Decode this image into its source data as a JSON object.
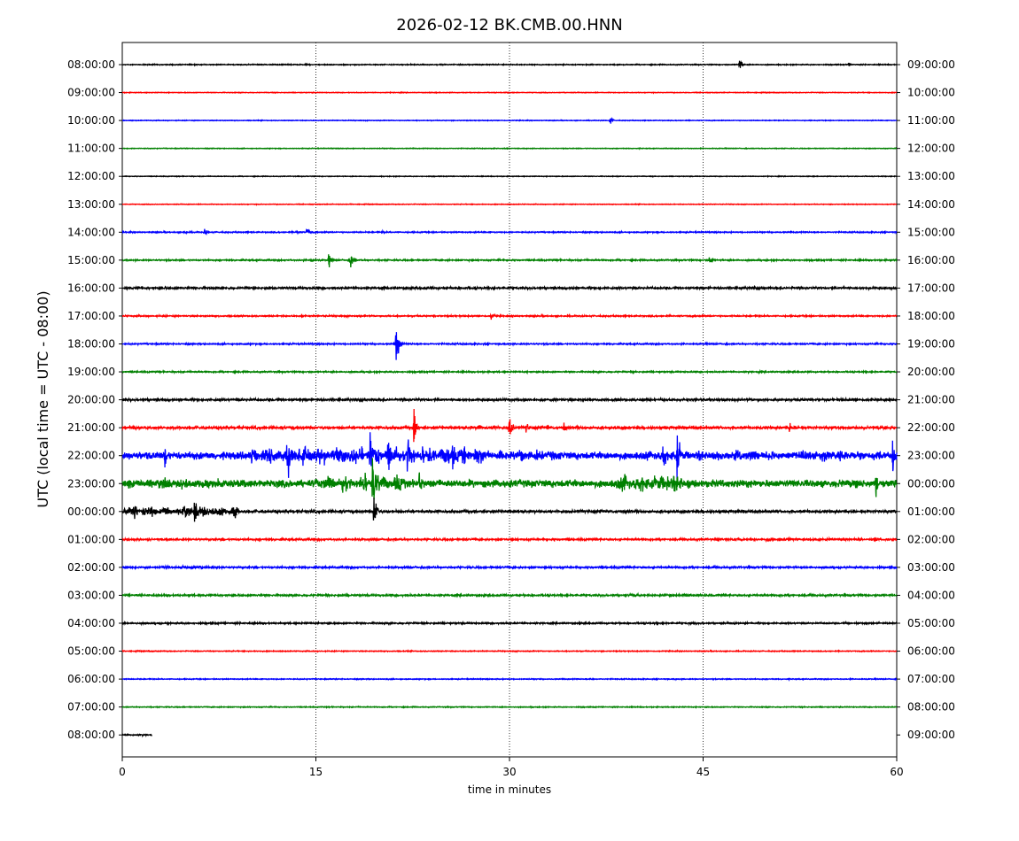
{
  "chart_data": {
    "type": "line",
    "title": "2026-02-12 BK.CMB.00.HNN",
    "xlabel": "time in minutes",
    "ylabel": "UTC (local time = UTC - 08:00)",
    "xlim": [
      0,
      60
    ],
    "x_ticks": [
      0,
      15,
      30,
      45,
      60
    ],
    "x_gridlines": [
      15,
      30,
      45
    ],
    "grid": "vertical dotted lines at 15, 30, 45",
    "color_cycle": [
      "#000000",
      "#ff0000",
      "#0000ff",
      "#008000"
    ],
    "left_labels": [
      "08:00:00",
      "09:00:00",
      "10:00:00",
      "11:00:00",
      "12:00:00",
      "13:00:00",
      "14:00:00",
      "15:00:00",
      "16:00:00",
      "17:00:00",
      "18:00:00",
      "19:00:00",
      "20:00:00",
      "21:00:00",
      "22:00:00",
      "23:00:00",
      "00:00:00",
      "01:00:00",
      "02:00:00",
      "03:00:00",
      "04:00:00",
      "05:00:00",
      "06:00:00",
      "07:00:00",
      "08:00:00"
    ],
    "right_labels": [
      "09:00:00",
      "10:00:00",
      "11:00:00",
      "12:00:00",
      "13:00:00",
      "14:00:00",
      "15:00:00",
      "16:00:00",
      "17:00:00",
      "18:00:00",
      "19:00:00",
      "20:00:00",
      "21:00:00",
      "22:00:00",
      "23:00:00",
      "00:00:00",
      "01:00:00",
      "02:00:00",
      "03:00:00",
      "04:00:00",
      "05:00:00",
      "06:00:00",
      "07:00:00",
      "08:00:00",
      "09:00:00"
    ],
    "trace_noise_levels": [
      0.4,
      0.3,
      0.3,
      0.3,
      0.3,
      0.3,
      0.5,
      0.6,
      0.9,
      0.6,
      0.6,
      0.6,
      1.0,
      1.2,
      3.5,
      3.5,
      1.2,
      0.8,
      0.8,
      0.8,
      0.7,
      0.4,
      0.4,
      0.4,
      0.6
    ],
    "last_trace_end_minute": 2.3,
    "events": [
      {
        "trace": 0,
        "minute": 47.8,
        "amp": 7
      },
      {
        "trace": 0,
        "minute": 56.3,
        "amp": 2.5
      },
      {
        "trace": 2,
        "minute": 37.8,
        "amp": 3.5
      },
      {
        "trace": 6,
        "minute": 4.8,
        "amp": 3
      },
      {
        "trace": 6,
        "minute": 6.4,
        "amp": 4
      },
      {
        "trace": 6,
        "minute": 13.5,
        "amp": 3
      },
      {
        "trace": 6,
        "minute": 14.3,
        "amp": 5
      },
      {
        "trace": 6,
        "minute": 20.2,
        "amp": 2
      },
      {
        "trace": 7,
        "minute": 14.6,
        "amp": 4
      },
      {
        "trace": 7,
        "minute": 16.0,
        "amp": 7
      },
      {
        "trace": 7,
        "minute": 17.7,
        "amp": 8
      },
      {
        "trace": 7,
        "minute": 45.5,
        "amp": 5
      },
      {
        "trace": 8,
        "minute": 34.9,
        "amp": 2
      },
      {
        "trace": 9,
        "minute": 28.6,
        "amp": 6
      },
      {
        "trace": 9,
        "minute": 13.9,
        "amp": 2.5
      },
      {
        "trace": 10,
        "minute": 21.2,
        "amp": 24
      },
      {
        "trace": 13,
        "minute": 22.6,
        "amp": 22
      },
      {
        "trace": 13,
        "minute": 27.6,
        "amp": 8
      },
      {
        "trace": 13,
        "minute": 28.8,
        "amp": 8
      },
      {
        "trace": 13,
        "minute": 30.0,
        "amp": 16
      },
      {
        "trace": 13,
        "minute": 31.3,
        "amp": 7
      },
      {
        "trace": 13,
        "minute": 32.9,
        "amp": 5
      },
      {
        "trace": 13,
        "minute": 34.2,
        "amp": 5
      },
      {
        "trace": 13,
        "minute": 51.7,
        "amp": 7
      },
      {
        "trace": 14,
        "minute": 3.3,
        "amp": 18
      },
      {
        "trace": 14,
        "minute": 12.9,
        "amp": 24
      },
      {
        "trace": 14,
        "minute": 19.2,
        "amp": 26
      },
      {
        "trace": 14,
        "minute": 20.6,
        "amp": 32
      },
      {
        "trace": 14,
        "minute": 22.1,
        "amp": 34
      },
      {
        "trace": 14,
        "minute": 25.6,
        "amp": 16
      },
      {
        "trace": 14,
        "minute": 41.9,
        "amp": 22
      },
      {
        "trace": 14,
        "minute": 43.0,
        "amp": 28
      },
      {
        "trace": 14,
        "minute": 59.7,
        "amp": 22
      },
      {
        "trace": 15,
        "minute": 19.4,
        "amp": 44
      },
      {
        "trace": 15,
        "minute": 23.0,
        "amp": 14
      },
      {
        "trace": 15,
        "minute": 38.9,
        "amp": 14
      },
      {
        "trace": 15,
        "minute": 42.2,
        "amp": 14
      },
      {
        "trace": 15,
        "minute": 58.4,
        "amp": 14
      },
      {
        "trace": 16,
        "minute": 0.9,
        "amp": 14
      },
      {
        "trace": 16,
        "minute": 2.3,
        "amp": 8
      },
      {
        "trace": 16,
        "minute": 5.6,
        "amp": 16
      },
      {
        "trace": 16,
        "minute": 8.6,
        "amp": 6
      },
      {
        "trace": 16,
        "minute": 19.5,
        "amp": 28
      },
      {
        "trace": 22,
        "minute": 36.3,
        "amp": 2
      }
    ],
    "bursts": [
      {
        "trace": 14,
        "from": 10,
        "to": 28,
        "amp": 9
      },
      {
        "trace": 14,
        "from": 28,
        "to": 34,
        "amp": 5
      },
      {
        "trace": 14,
        "from": 40,
        "to": 60,
        "amp": 5
      },
      {
        "trace": 15,
        "from": 0,
        "to": 8,
        "amp": 5
      },
      {
        "trace": 15,
        "from": 15,
        "to": 22,
        "amp": 8
      },
      {
        "trace": 15,
        "from": 38,
        "to": 44,
        "amp": 8
      },
      {
        "trace": 16,
        "from": 0,
        "to": 9,
        "amp": 5
      },
      {
        "trace": 17,
        "from": 46,
        "to": 60,
        "amp": 1.3
      },
      {
        "trace": 18,
        "from": 0,
        "to": 7.5,
        "amp": 1.3
      },
      {
        "trace": 19,
        "from": 39,
        "to": 46,
        "amp": 1.2
      }
    ]
  }
}
